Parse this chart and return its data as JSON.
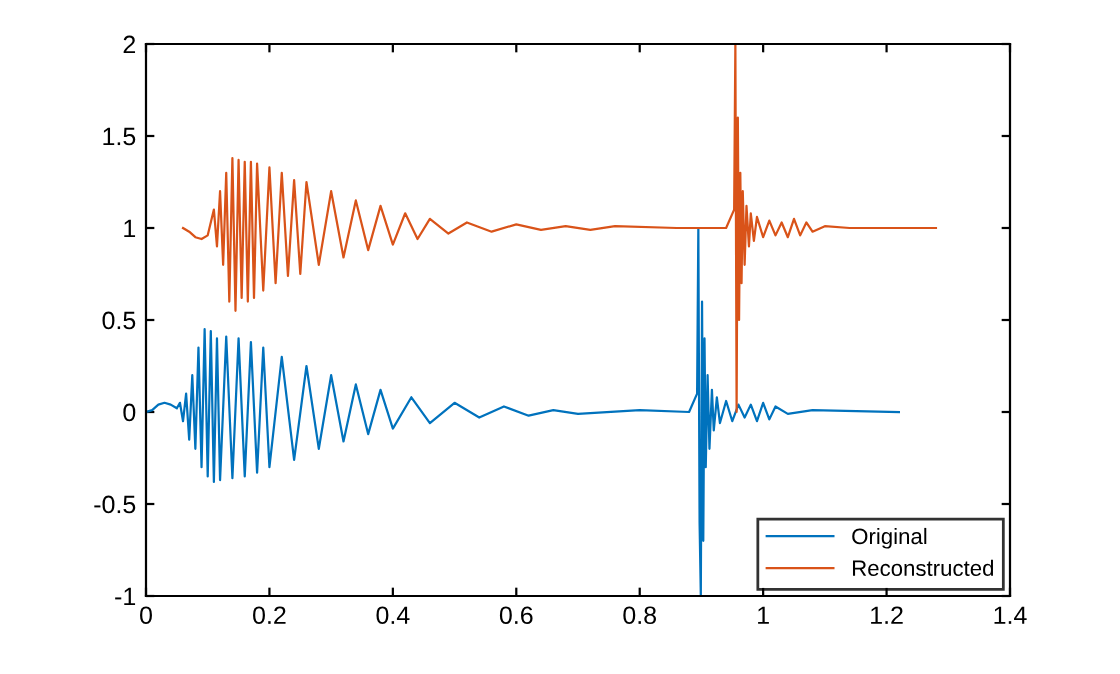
{
  "chart_data": {
    "type": "line",
    "xlim": [
      0,
      1.4
    ],
    "ylim": [
      -1,
      2
    ],
    "xticks": [
      0,
      0.2,
      0.4,
      0.6,
      0.8,
      1,
      1.2,
      1.4
    ],
    "yticks": [
      -1,
      -0.5,
      0,
      0.5,
      1,
      1.5,
      2
    ],
    "grid": false,
    "legend": "bottom right",
    "marker": "none",
    "line_style": "solid",
    "series": [
      {
        "name": "Original",
        "color": "#0072bd",
        "x": [
          0,
          0.01,
          0.02,
          0.03,
          0.04,
          0.05,
          0.055,
          0.06,
          0.065,
          0.07,
          0.075,
          0.08,
          0.085,
          0.09,
          0.095,
          0.1,
          0.105,
          0.11,
          0.115,
          0.12,
          0.13,
          0.14,
          0.15,
          0.16,
          0.17,
          0.18,
          0.19,
          0.2,
          0.22,
          0.24,
          0.26,
          0.28,
          0.3,
          0.32,
          0.34,
          0.36,
          0.38,
          0.4,
          0.43,
          0.46,
          0.5,
          0.54,
          0.58,
          0.62,
          0.66,
          0.7,
          0.8,
          0.88,
          0.893,
          0.895,
          0.897,
          0.899,
          0.901,
          0.903,
          0.905,
          0.907,
          0.91,
          0.913,
          0.917,
          0.92,
          0.925,
          0.93,
          0.94,
          0.95,
          0.96,
          0.97,
          0.98,
          0.99,
          1.0,
          1.01,
          1.02,
          1.04,
          1.08,
          1.22
        ],
        "values": [
          0,
          0.01,
          0.04,
          0.05,
          0.04,
          0.02,
          0.05,
          -0.05,
          0.1,
          -0.15,
          0.2,
          -0.2,
          0.35,
          -0.3,
          0.45,
          -0.35,
          0.44,
          -0.38,
          0.4,
          -0.37,
          0.41,
          -0.36,
          0.4,
          -0.35,
          0.38,
          -0.33,
          0.35,
          -0.3,
          0.3,
          -0.26,
          0.25,
          -0.2,
          0.2,
          -0.16,
          0.15,
          -0.12,
          0.12,
          -0.09,
          0.08,
          -0.06,
          0.05,
          -0.03,
          0.03,
          -0.02,
          0.01,
          -0.01,
          0.01,
          0,
          0.1,
          1.0,
          -0.6,
          -1.0,
          0.6,
          -0.7,
          0.4,
          -0.3,
          0.2,
          -0.2,
          0.12,
          -0.1,
          0.08,
          -0.06,
          0.06,
          -0.05,
          0.04,
          -0.03,
          0.04,
          -0.05,
          0.05,
          -0.04,
          0.03,
          -0.01,
          0.01,
          0
        ]
      },
      {
        "name": "Reconstructed",
        "color": "#d95319",
        "x": [
          0.06,
          0.07,
          0.08,
          0.09,
          0.1,
          0.11,
          0.115,
          0.12,
          0.125,
          0.13,
          0.135,
          0.14,
          0.145,
          0.15,
          0.155,
          0.16,
          0.165,
          0.17,
          0.175,
          0.18,
          0.19,
          0.2,
          0.21,
          0.22,
          0.23,
          0.24,
          0.25,
          0.26,
          0.28,
          0.3,
          0.32,
          0.34,
          0.36,
          0.38,
          0.4,
          0.42,
          0.44,
          0.46,
          0.49,
          0.52,
          0.56,
          0.6,
          0.64,
          0.68,
          0.72,
          0.76,
          0.86,
          0.94,
          0.953,
          0.955,
          0.957,
          0.959,
          0.961,
          0.963,
          0.965,
          0.967,
          0.97,
          0.973,
          0.977,
          0.98,
          0.985,
          0.99,
          1.0,
          1.01,
          1.02,
          1.03,
          1.04,
          1.05,
          1.06,
          1.07,
          1.08,
          1.1,
          1.14,
          1.28
        ],
        "values": [
          1.0,
          0.98,
          0.95,
          0.94,
          0.96,
          1.1,
          0.9,
          1.2,
          0.8,
          1.3,
          0.6,
          1.38,
          0.55,
          1.37,
          0.62,
          1.36,
          0.6,
          1.36,
          0.62,
          1.35,
          0.66,
          1.33,
          0.7,
          1.3,
          0.74,
          1.26,
          0.75,
          1.25,
          0.8,
          1.2,
          0.84,
          1.15,
          0.88,
          1.12,
          0.91,
          1.08,
          0.94,
          1.05,
          0.97,
          1.03,
          0.98,
          1.02,
          0.99,
          1.01,
          0.99,
          1.01,
          1.0,
          1.0,
          1.1,
          2.0,
          0,
          1.6,
          0.5,
          1.3,
          0.7,
          1.2,
          0.8,
          1.12,
          0.9,
          1.08,
          0.93,
          1.06,
          0.95,
          1.04,
          0.96,
          1.03,
          0.95,
          1.05,
          0.96,
          1.03,
          0.98,
          1.01,
          1.0,
          1.0
        ]
      }
    ]
  }
}
